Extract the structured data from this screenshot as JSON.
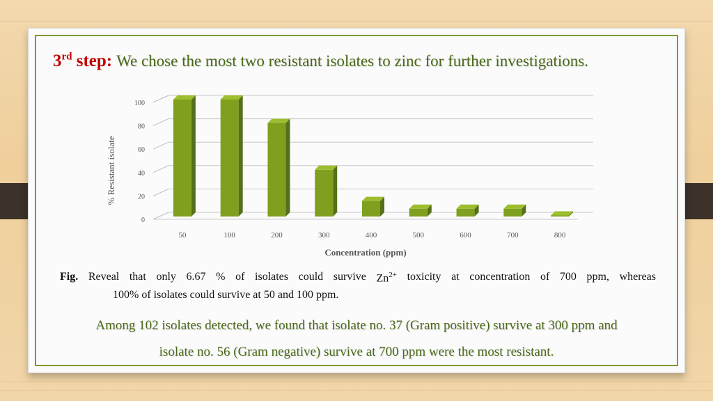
{
  "slide": {
    "title_step": "3",
    "title_step_sup": "rd",
    "title_step_word": "step:",
    "title_text": "We chose the most two resistant isolates to zinc for further investigations."
  },
  "caption": {
    "fig_label": "Fig.",
    "words_line1": [
      "Reveal",
      "that",
      "only",
      "6.67",
      "%",
      "of",
      "isolates",
      "could",
      "survive",
      "Zn"
    ],
    "zn_sup": "2+",
    "words_line1b": [
      "toxicity",
      "at",
      "concentration",
      "of",
      "700",
      "ppm,",
      "whereas"
    ],
    "line2": "100% of isolates could survive at 50 and 100 ppm."
  },
  "summary": {
    "line1": "Among 102 isolates detected, we found that isolate no. 37 (Gram positive) survive at 300 ppm and",
    "line2": "isolate no. 56 (Gram negative) survive at 700 ppm were the most resistant."
  },
  "colors": {
    "bar": "#7fa01e",
    "bar_top": "#9dbe2e",
    "bar_side": "#55701a",
    "title_red": "#c00000",
    "title_green": "#4a6a18"
  },
  "chart_data": {
    "type": "bar",
    "categories": [
      "50",
      "100",
      "200",
      "300",
      "400",
      "500",
      "600",
      "700",
      "800"
    ],
    "values": [
      100,
      100,
      80,
      40,
      13.33,
      6.67,
      6.67,
      6.67,
      0
    ],
    "xlabel": "Concentration (ppm)",
    "ylabel": "% Resistant isolate",
    "ylim": [
      0,
      100
    ],
    "yticks": [
      "0",
      "20",
      "40",
      "60",
      "80",
      "100"
    ],
    "grid": true,
    "style": "3d-columns"
  }
}
